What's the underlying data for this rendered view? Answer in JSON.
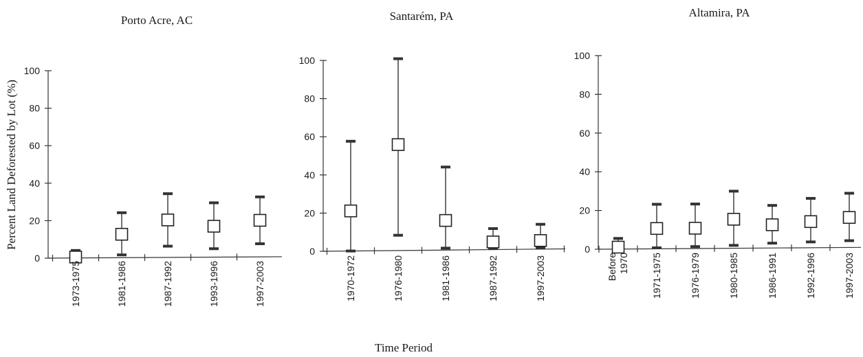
{
  "chart_data": [
    {
      "type": "scatter",
      "title": "Porto Acre, AC",
      "ylabel": "Percent Land Deforested by Lot (%)",
      "xlabel": "Time Period",
      "ylim": [
        0,
        100
      ],
      "yticks": [
        0,
        20,
        40,
        60,
        80,
        100
      ],
      "categories": [
        "1973-1975",
        "1981-1986",
        "1987-1992",
        "1993-1996",
        "1997-2003"
      ],
      "series": [
        {
          "mean": [
            0.5,
            12.5,
            20,
            16.5,
            19.5
          ],
          "low": [
            0,
            1.5,
            6,
            4.5,
            7
          ],
          "high": [
            4,
            24,
            34,
            29,
            32
          ]
        }
      ]
    },
    {
      "type": "scatter",
      "title": "Santarém, PA",
      "ylim": [
        0,
        100
      ],
      "yticks": [
        0,
        20,
        40,
        60,
        80,
        100
      ],
      "categories": [
        "1970-1972",
        "1976-1980",
        "1981-1986",
        "1987-1992",
        "1997-2003"
      ],
      "series": [
        {
          "mean": [
            21,
            55.5,
            15.5,
            4,
            4.5
          ],
          "low": [
            0,
            8,
            1,
            0.5,
            0.5
          ],
          "high": [
            57.5,
            100.5,
            43.5,
            11,
            13
          ]
        }
      ]
    },
    {
      "type": "scatter",
      "title": "Altamira, PA",
      "ylim": [
        0,
        100
      ],
      "yticks": [
        0,
        20,
        40,
        60,
        80,
        100
      ],
      "categories": [
        "Before 1970",
        "1971-1975",
        "1976-1979",
        "1980-1985",
        "1986-1991",
        "1992-1996",
        "1997-2003"
      ],
      "series": [
        {
          "mean": [
            1,
            10.5,
            10.5,
            15,
            12,
            13.5,
            15.5
          ],
          "low": [
            0,
            0.5,
            1,
            1.5,
            2.5,
            3,
            3.5
          ],
          "high": [
            5.5,
            23,
            23,
            29.5,
            22,
            25.5,
            28
          ]
        }
      ]
    }
  ]
}
